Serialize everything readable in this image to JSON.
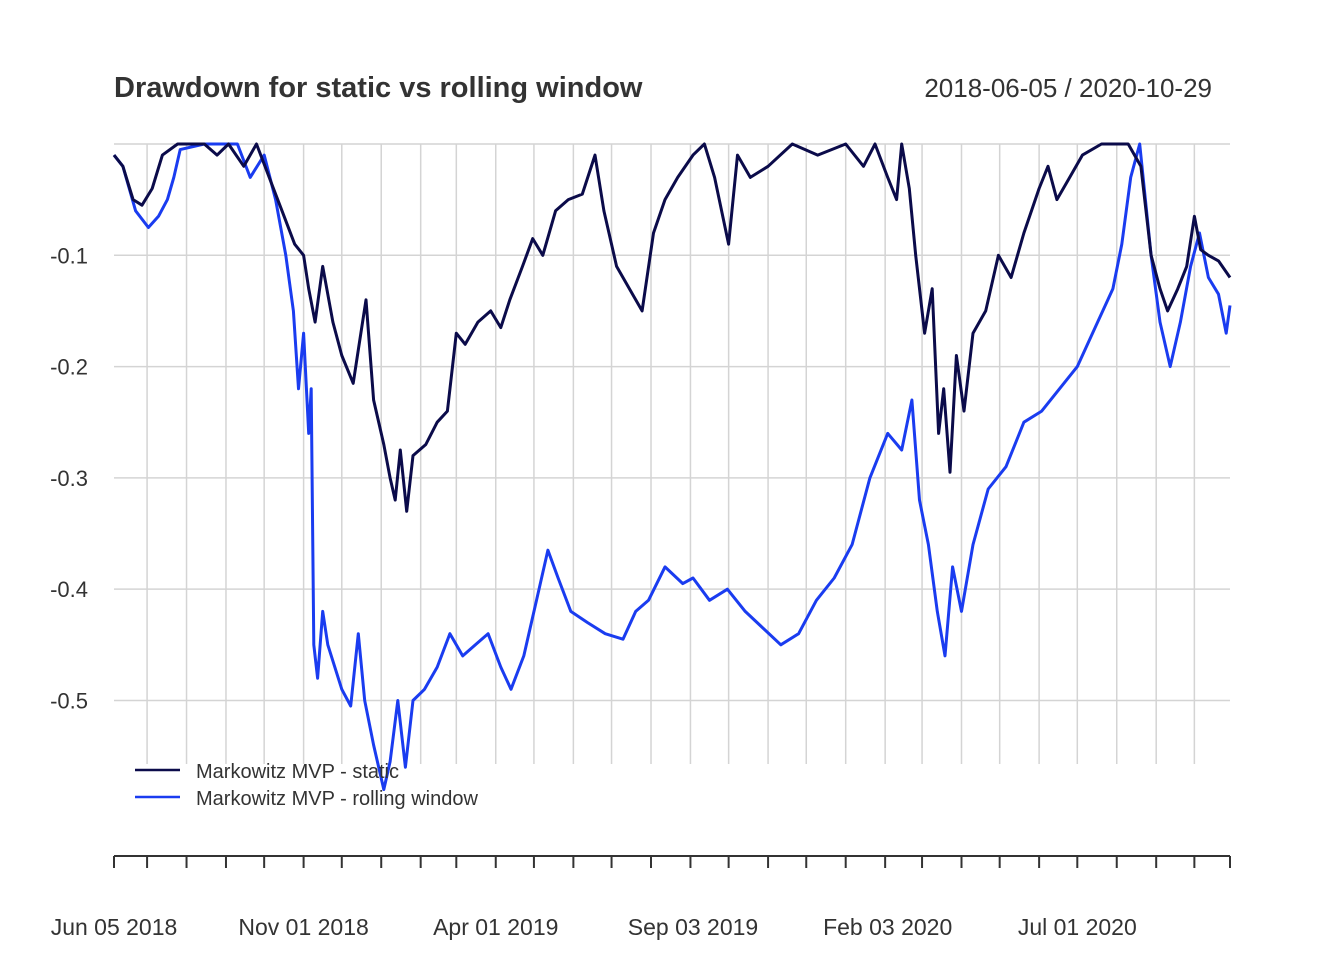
{
  "chart_data": {
    "type": "line",
    "title": "Drawdown for static vs rolling window",
    "date_range_label": "2018-06-05 / 2020-10-29",
    "xlabel": "",
    "ylabel": "",
    "x_range": [
      "2018-06-05",
      "2020-10-29"
    ],
    "ylim": [
      -0.62,
      0.0
    ],
    "y_ticks": [
      -0.1,
      -0.2,
      -0.3,
      -0.4,
      -0.5
    ],
    "y_tick_labels": [
      "-0.1",
      "-0.2",
      "-0.3",
      "-0.4",
      "-0.5"
    ],
    "x_tick_labels": [
      {
        "date": "2018-06-05",
        "label": "Jun 05 2018"
      },
      {
        "date": "2018-11-01",
        "label": "Nov 01 2018"
      },
      {
        "date": "2019-04-01",
        "label": "Apr 01 2019"
      },
      {
        "date": "2019-09-03",
        "label": "Sep 03 2019"
      },
      {
        "date": "2020-02-03",
        "label": "Feb 03 2020"
      },
      {
        "date": "2020-07-01",
        "label": "Jul 01 2020"
      }
    ],
    "grid": true,
    "legend_position": "bottom-left",
    "series": [
      {
        "name": "Markowitz MVP - static",
        "color": "#0b0b4a",
        "points": [
          [
            "2018-06-05",
            -0.01
          ],
          [
            "2018-06-12",
            -0.02
          ],
          [
            "2018-06-20",
            -0.05
          ],
          [
            "2018-06-27",
            -0.055
          ],
          [
            "2018-07-05",
            -0.04
          ],
          [
            "2018-07-13",
            -0.01
          ],
          [
            "2018-07-25",
            0.0
          ],
          [
            "2018-08-15",
            0.0
          ],
          [
            "2018-08-25",
            -0.01
          ],
          [
            "2018-09-03",
            0.0
          ],
          [
            "2018-09-15",
            -0.02
          ],
          [
            "2018-09-25",
            0.0
          ],
          [
            "2018-10-05",
            -0.03
          ],
          [
            "2018-10-15",
            -0.06
          ],
          [
            "2018-10-25",
            -0.09
          ],
          [
            "2018-11-01",
            -0.1
          ],
          [
            "2018-11-05",
            -0.13
          ],
          [
            "2018-11-10",
            -0.16
          ],
          [
            "2018-11-16",
            -0.11
          ],
          [
            "2018-11-24",
            -0.16
          ],
          [
            "2018-12-01",
            -0.19
          ],
          [
            "2018-12-10",
            -0.215
          ],
          [
            "2018-12-14",
            -0.185
          ],
          [
            "2018-12-20",
            -0.14
          ],
          [
            "2018-12-26",
            -0.23
          ],
          [
            "2019-01-03",
            -0.27
          ],
          [
            "2019-01-08",
            -0.3
          ],
          [
            "2019-01-12",
            -0.32
          ],
          [
            "2019-01-16",
            -0.275
          ],
          [
            "2019-01-21",
            -0.33
          ],
          [
            "2019-01-26",
            -0.28
          ],
          [
            "2019-02-05",
            -0.27
          ],
          [
            "2019-02-14",
            -0.25
          ],
          [
            "2019-02-22",
            -0.24
          ],
          [
            "2019-03-01",
            -0.17
          ],
          [
            "2019-03-08",
            -0.18
          ],
          [
            "2019-03-18",
            -0.16
          ],
          [
            "2019-03-28",
            -0.15
          ],
          [
            "2019-04-05",
            -0.165
          ],
          [
            "2019-04-12",
            -0.14
          ],
          [
            "2019-04-22",
            -0.11
          ],
          [
            "2019-04-30",
            -0.085
          ],
          [
            "2019-05-08",
            -0.1
          ],
          [
            "2019-05-18",
            -0.06
          ],
          [
            "2019-05-28",
            -0.05
          ],
          [
            "2019-06-08",
            -0.045
          ],
          [
            "2019-06-18",
            -0.01
          ],
          [
            "2019-06-25",
            -0.06
          ],
          [
            "2019-07-05",
            -0.11
          ],
          [
            "2019-07-15",
            -0.13
          ],
          [
            "2019-07-25",
            -0.15
          ],
          [
            "2019-08-03",
            -0.08
          ],
          [
            "2019-08-12",
            -0.05
          ],
          [
            "2019-08-22",
            -0.03
          ],
          [
            "2019-09-03",
            -0.01
          ],
          [
            "2019-09-12",
            0.0
          ],
          [
            "2019-09-20",
            -0.03
          ],
          [
            "2019-10-01",
            -0.09
          ],
          [
            "2019-10-08",
            -0.01
          ],
          [
            "2019-10-18",
            -0.03
          ],
          [
            "2019-11-01",
            -0.02
          ],
          [
            "2019-11-20",
            0.0
          ],
          [
            "2019-12-10",
            -0.01
          ],
          [
            "2020-01-01",
            0.0
          ],
          [
            "2020-01-15",
            -0.02
          ],
          [
            "2020-01-24",
            0.0
          ],
          [
            "2020-02-03",
            -0.03
          ],
          [
            "2020-02-10",
            -0.05
          ],
          [
            "2020-02-14",
            0.0
          ],
          [
            "2020-02-20",
            -0.04
          ],
          [
            "2020-02-25",
            -0.1
          ],
          [
            "2020-03-03",
            -0.17
          ],
          [
            "2020-03-09",
            -0.13
          ],
          [
            "2020-03-14",
            -0.26
          ],
          [
            "2020-03-18",
            -0.22
          ],
          [
            "2020-03-23",
            -0.295
          ],
          [
            "2020-03-28",
            -0.19
          ],
          [
            "2020-04-03",
            -0.24
          ],
          [
            "2020-04-10",
            -0.17
          ],
          [
            "2020-04-20",
            -0.15
          ],
          [
            "2020-04-30",
            -0.1
          ],
          [
            "2020-05-10",
            -0.12
          ],
          [
            "2020-05-20",
            -0.08
          ],
          [
            "2020-06-01",
            -0.04
          ],
          [
            "2020-06-08",
            -0.02
          ],
          [
            "2020-06-15",
            -0.05
          ],
          [
            "2020-06-25",
            -0.03
          ],
          [
            "2020-07-05",
            -0.01
          ],
          [
            "2020-07-20",
            0.0
          ],
          [
            "2020-08-10",
            0.0
          ],
          [
            "2020-08-20",
            -0.02
          ],
          [
            "2020-08-28",
            -0.1
          ],
          [
            "2020-09-04",
            -0.13
          ],
          [
            "2020-09-10",
            -0.15
          ],
          [
            "2020-09-18",
            -0.13
          ],
          [
            "2020-09-25",
            -0.11
          ],
          [
            "2020-10-01",
            -0.065
          ],
          [
            "2020-10-06",
            -0.095
          ],
          [
            "2020-10-12",
            -0.1
          ],
          [
            "2020-10-20",
            -0.105
          ],
          [
            "2020-10-29",
            -0.12
          ]
        ]
      },
      {
        "name": "Markowitz MVP - rolling window",
        "color": "#1a3cf0",
        "points": [
          [
            "2018-06-05",
            -0.01
          ],
          [
            "2018-06-12",
            -0.02
          ],
          [
            "2018-06-22",
            -0.06
          ],
          [
            "2018-07-02",
            -0.075
          ],
          [
            "2018-07-10",
            -0.065
          ],
          [
            "2018-07-17",
            -0.05
          ],
          [
            "2018-07-22",
            -0.03
          ],
          [
            "2018-07-27",
            -0.005
          ],
          [
            "2018-08-15",
            0.0
          ],
          [
            "2018-09-10",
            0.0
          ],
          [
            "2018-09-20",
            -0.03
          ],
          [
            "2018-10-01",
            -0.01
          ],
          [
            "2018-10-10",
            -0.05
          ],
          [
            "2018-10-18",
            -0.1
          ],
          [
            "2018-10-24",
            -0.15
          ],
          [
            "2018-10-28",
            -0.22
          ],
          [
            "2018-11-01",
            -0.17
          ],
          [
            "2018-11-05",
            -0.26
          ],
          [
            "2018-11-07",
            -0.22
          ],
          [
            "2018-11-09",
            -0.45
          ],
          [
            "2018-11-12",
            -0.48
          ],
          [
            "2018-11-16",
            -0.42
          ],
          [
            "2018-11-20",
            -0.45
          ],
          [
            "2018-12-01",
            -0.49
          ],
          [
            "2018-12-08",
            -0.505
          ],
          [
            "2018-12-14",
            -0.44
          ],
          [
            "2018-12-19",
            -0.5
          ],
          [
            "2018-12-26",
            -0.54
          ],
          [
            "2019-01-03",
            -0.58
          ],
          [
            "2019-01-08",
            -0.555
          ],
          [
            "2019-01-14",
            -0.5
          ],
          [
            "2019-01-20",
            -0.56
          ],
          [
            "2019-01-26",
            -0.5
          ],
          [
            "2019-02-04",
            -0.49
          ],
          [
            "2019-02-14",
            -0.47
          ],
          [
            "2019-02-24",
            -0.44
          ],
          [
            "2019-03-06",
            -0.46
          ],
          [
            "2019-03-16",
            -0.45
          ],
          [
            "2019-03-26",
            -0.44
          ],
          [
            "2019-04-05",
            -0.47
          ],
          [
            "2019-04-13",
            -0.49
          ],
          [
            "2019-04-23",
            -0.46
          ],
          [
            "2019-05-03",
            -0.41
          ],
          [
            "2019-05-12",
            -0.365
          ],
          [
            "2019-05-20",
            -0.39
          ],
          [
            "2019-05-30",
            -0.42
          ],
          [
            "2019-06-12",
            -0.43
          ],
          [
            "2019-06-26",
            -0.44
          ],
          [
            "2019-07-10",
            -0.445
          ],
          [
            "2019-07-20",
            -0.42
          ],
          [
            "2019-07-30",
            -0.41
          ],
          [
            "2019-08-12",
            -0.38
          ],
          [
            "2019-08-26",
            -0.395
          ],
          [
            "2019-09-03",
            -0.39
          ],
          [
            "2019-09-16",
            -0.41
          ],
          [
            "2019-09-30",
            -0.4
          ],
          [
            "2019-10-14",
            -0.42
          ],
          [
            "2019-10-28",
            -0.435
          ],
          [
            "2019-11-11",
            -0.45
          ],
          [
            "2019-11-25",
            -0.44
          ],
          [
            "2019-12-09",
            -0.41
          ],
          [
            "2019-12-23",
            -0.39
          ],
          [
            "2020-01-06",
            -0.36
          ],
          [
            "2020-01-20",
            -0.3
          ],
          [
            "2020-02-03",
            -0.26
          ],
          [
            "2020-02-14",
            -0.275
          ],
          [
            "2020-02-22",
            -0.23
          ],
          [
            "2020-02-28",
            -0.32
          ],
          [
            "2020-03-06",
            -0.36
          ],
          [
            "2020-03-13",
            -0.42
          ],
          [
            "2020-03-19",
            -0.46
          ],
          [
            "2020-03-25",
            -0.38
          ],
          [
            "2020-04-01",
            -0.42
          ],
          [
            "2020-04-10",
            -0.36
          ],
          [
            "2020-04-22",
            -0.31
          ],
          [
            "2020-05-06",
            -0.29
          ],
          [
            "2020-05-20",
            -0.25
          ],
          [
            "2020-06-03",
            -0.24
          ],
          [
            "2020-06-17",
            -0.22
          ],
          [
            "2020-07-01",
            -0.2
          ],
          [
            "2020-07-15",
            -0.165
          ],
          [
            "2020-07-29",
            -0.13
          ],
          [
            "2020-08-05",
            -0.09
          ],
          [
            "2020-08-12",
            -0.03
          ],
          [
            "2020-08-19",
            0.0
          ],
          [
            "2020-08-28",
            -0.1
          ],
          [
            "2020-09-04",
            -0.16
          ],
          [
            "2020-09-12",
            -0.2
          ],
          [
            "2020-09-20",
            -0.16
          ],
          [
            "2020-09-28",
            -0.11
          ],
          [
            "2020-10-05",
            -0.08
          ],
          [
            "2020-10-12",
            -0.12
          ],
          [
            "2020-10-20",
            -0.135
          ],
          [
            "2020-10-26",
            -0.17
          ],
          [
            "2020-10-29",
            -0.145
          ]
        ]
      }
    ]
  }
}
